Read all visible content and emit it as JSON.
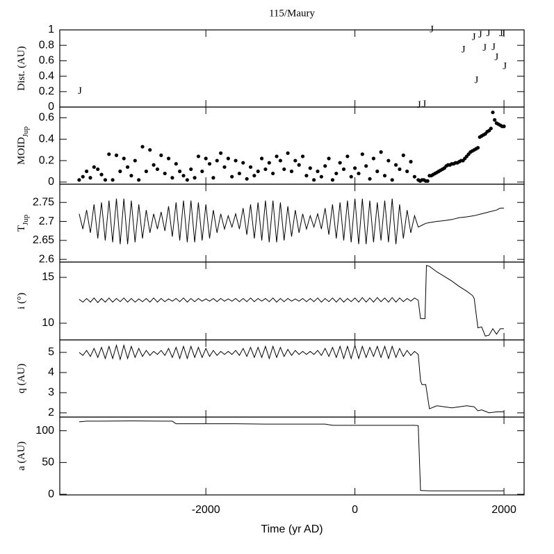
{
  "chart_data": {
    "title": "115/Maury",
    "xlabel": "Time (yr AD)",
    "xlim": [
      -3960,
      2270
    ],
    "xticks": [
      -2000,
      0,
      2000
    ],
    "color": "#000000",
    "panels": [
      {
        "type": "scatter",
        "ylabel": "Dist. (AU)",
        "marker": "J",
        "ylim": [
          0,
          1
        ],
        "yticks": [
          0,
          0.2,
          0.4,
          0.6,
          0.8,
          1
        ],
        "x": [
          -3690,
          860,
          930,
          1030,
          1455,
          1595,
          1630,
          1680,
          1740,
          1790,
          1860,
          1900,
          1960,
          1990,
          2010
        ],
        "values": [
          0.2,
          0.02,
          0.03,
          1.0,
          0.74,
          0.9,
          0.34,
          0.93,
          0.76,
          0.95,
          0.77,
          0.64,
          0.95,
          0.95,
          0.52
        ]
      },
      {
        "type": "scatter",
        "ylabel": "MOID",
        "ylabel_sub": "Jup",
        "ylim": [
          -0.02,
          0.7
        ],
        "yticks": [
          0,
          0.2,
          0.4,
          0.6
        ],
        "x": [
          -3700,
          -3650,
          -3600,
          -3550,
          -3500,
          -3450,
          -3400,
          -3350,
          -3300,
          -3250,
          -3200,
          -3150,
          -3100,
          -3050,
          -3000,
          -2950,
          -2900,
          -2850,
          -2800,
          -2750,
          -2700,
          -2650,
          -2600,
          -2550,
          -2500,
          -2450,
          -2400,
          -2350,
          -2300,
          -2250,
          -2200,
          -2150,
          -2100,
          -2050,
          -2000,
          -1950,
          -1900,
          -1850,
          -1800,
          -1750,
          -1700,
          -1650,
          -1600,
          -1550,
          -1500,
          -1450,
          -1400,
          -1350,
          -1300,
          -1250,
          -1200,
          -1150,
          -1100,
          -1050,
          -1000,
          -950,
          -900,
          -850,
          -800,
          -750,
          -700,
          -650,
          -600,
          -550,
          -500,
          -450,
          -400,
          -350,
          -300,
          -250,
          -200,
          -150,
          -100,
          -50,
          0,
          50,
          100,
          150,
          200,
          250,
          300,
          350,
          400,
          450,
          500,
          550,
          600,
          650,
          700,
          750,
          800,
          850,
          875,
          900,
          925,
          950,
          975,
          1000,
          1025,
          1050,
          1075,
          1100,
          1125,
          1150,
          1175,
          1200,
          1225,
          1250,
          1275,
          1300,
          1325,
          1350,
          1375,
          1400,
          1425,
          1450,
          1475,
          1500,
          1525,
          1550,
          1575,
          1600,
          1625,
          1650,
          1675,
          1700,
          1725,
          1750,
          1775,
          1800,
          1825,
          1850,
          1875,
          1900,
          1925,
          1950,
          1975,
          2000
        ],
        "values": [
          0.02,
          0.05,
          0.1,
          0.04,
          0.14,
          0.12,
          0.07,
          0.02,
          0.26,
          0.02,
          0.25,
          0.1,
          0.22,
          0.14,
          0.06,
          0.2,
          0.02,
          0.33,
          0.1,
          0.3,
          0.16,
          0.12,
          0.25,
          0.08,
          0.22,
          0.04,
          0.17,
          0.1,
          0.06,
          0.02,
          0.12,
          0.04,
          0.24,
          0.1,
          0.22,
          0.17,
          0.04,
          0.2,
          0.27,
          0.14,
          0.22,
          0.05,
          0.2,
          0.08,
          0.18,
          0.03,
          0.14,
          0.06,
          0.1,
          0.22,
          0.12,
          0.18,
          0.08,
          0.24,
          0.2,
          0.12,
          0.27,
          0.1,
          0.2,
          0.16,
          0.24,
          0.06,
          0.13,
          0.02,
          0.1,
          0.05,
          0.15,
          0.22,
          0.02,
          0.08,
          0.18,
          0.12,
          0.24,
          0.05,
          0.13,
          0.08,
          0.26,
          0.15,
          0.03,
          0.22,
          0.1,
          0.28,
          0.06,
          0.2,
          0.02,
          0.16,
          0.12,
          0.25,
          0.1,
          0.19,
          0.05,
          0.02,
          0.01,
          0.02,
          0.02,
          0.01,
          0.01,
          0.06,
          0.06,
          0.07,
          0.08,
          0.09,
          0.1,
          0.11,
          0.12,
          0.13,
          0.15,
          0.16,
          0.16,
          0.17,
          0.17,
          0.18,
          0.18,
          0.19,
          0.2,
          0.2,
          0.22,
          0.24,
          0.26,
          0.28,
          0.29,
          0.3,
          0.31,
          0.32,
          0.42,
          0.43,
          0.44,
          0.45,
          0.47,
          0.48,
          0.5,
          0.65,
          0.58,
          0.55,
          0.54,
          0.53,
          0.52,
          0.52
        ]
      },
      {
        "type": "line",
        "ylabel": "T",
        "ylabel_sub": "Jup",
        "ylim": [
          2.593,
          2.798
        ],
        "yticks": [
          2.6,
          2.65,
          2.7,
          2.75
        ],
        "x": [
          -3700,
          -3650,
          -3600,
          -3550,
          -3500,
          -3450,
          -3400,
          -3350,
          -3300,
          -3250,
          -3200,
          -3150,
          -3100,
          -3050,
          -3000,
          -2950,
          -2900,
          -2850,
          -2800,
          -2750,
          -2700,
          -2650,
          -2600,
          -2550,
          -2500,
          -2450,
          -2400,
          -2350,
          -2300,
          -2250,
          -2200,
          -2150,
          -2100,
          -2050,
          -2000,
          -1950,
          -1900,
          -1850,
          -1800,
          -1750,
          -1700,
          -1650,
          -1600,
          -1550,
          -1500,
          -1450,
          -1400,
          -1350,
          -1300,
          -1250,
          -1200,
          -1150,
          -1100,
          -1050,
          -1000,
          -950,
          -900,
          -850,
          -800,
          -750,
          -700,
          -650,
          -600,
          -550,
          -500,
          -450,
          -400,
          -350,
          -300,
          -250,
          -200,
          -150,
          -100,
          -50,
          0,
          50,
          100,
          150,
          200,
          250,
          300,
          350,
          400,
          450,
          500,
          550,
          600,
          650,
          700,
          750,
          800,
          850,
          900,
          950,
          1000,
          1100,
          1200,
          1300,
          1400,
          1500,
          1600,
          1700,
          1800,
          1900,
          1950,
          2000
        ],
        "values": [
          2.72,
          2.68,
          2.73,
          2.67,
          2.745,
          2.655,
          2.75,
          2.65,
          2.755,
          2.645,
          2.76,
          2.64,
          2.76,
          2.64,
          2.755,
          2.645,
          2.745,
          2.655,
          2.73,
          2.67,
          2.72,
          2.68,
          2.725,
          2.675,
          2.74,
          2.66,
          2.75,
          2.65,
          2.755,
          2.645,
          2.755,
          2.645,
          2.75,
          2.65,
          2.745,
          2.655,
          2.73,
          2.67,
          2.72,
          2.68,
          2.715,
          2.685,
          2.72,
          2.68,
          2.735,
          2.665,
          2.745,
          2.655,
          2.75,
          2.65,
          2.755,
          2.645,
          2.755,
          2.645,
          2.75,
          2.65,
          2.74,
          2.66,
          2.73,
          2.67,
          2.72,
          2.68,
          2.715,
          2.685,
          2.72,
          2.68,
          2.735,
          2.665,
          2.745,
          2.655,
          2.75,
          2.65,
          2.755,
          2.645,
          2.76,
          2.64,
          2.76,
          2.64,
          2.755,
          2.645,
          2.75,
          2.65,
          2.755,
          2.645,
          2.76,
          2.64,
          2.745,
          2.655,
          2.73,
          2.67,
          2.715,
          2.685,
          2.69,
          2.695,
          2.697,
          2.7,
          2.702,
          2.705,
          2.71,
          2.712,
          2.715,
          2.72,
          2.725,
          2.73,
          2.735,
          2.735
        ]
      },
      {
        "type": "line",
        "ylabel": "i (°)",
        "ylim": [
          8.18,
          16.67
        ],
        "yticks": [
          10,
          15
        ],
        "x": [
          -3700,
          -3650,
          -3600,
          -3550,
          -3500,
          -3450,
          -3400,
          -3350,
          -3300,
          -3250,
          -3200,
          -3150,
          -3100,
          -3050,
          -3000,
          -2950,
          -2900,
          -2850,
          -2800,
          -2750,
          -2700,
          -2650,
          -2600,
          -2550,
          -2500,
          -2450,
          -2400,
          -2350,
          -2300,
          -2250,
          -2200,
          -2150,
          -2100,
          -2050,
          -2000,
          -1950,
          -1900,
          -1850,
          -1800,
          -1750,
          -1700,
          -1650,
          -1600,
          -1550,
          -1500,
          -1450,
          -1400,
          -1350,
          -1300,
          -1250,
          -1200,
          -1150,
          -1100,
          -1050,
          -1000,
          -950,
          -900,
          -850,
          -800,
          -750,
          -700,
          -650,
          -600,
          -550,
          -500,
          -450,
          -400,
          -350,
          -300,
          -250,
          -200,
          -150,
          -100,
          -50,
          0,
          50,
          100,
          150,
          200,
          250,
          300,
          350,
          400,
          450,
          500,
          550,
          600,
          650,
          700,
          750,
          800,
          850,
          880,
          940,
          960,
          1000,
          1100,
          1200,
          1300,
          1400,
          1500,
          1580,
          1600,
          1650,
          1700,
          1750,
          1800,
          1850,
          1900,
          1950,
          2000
        ],
        "values": [
          12.6,
          12.3,
          12.7,
          12.3,
          12.75,
          12.25,
          12.7,
          12.3,
          12.75,
          12.3,
          12.7,
          12.35,
          12.75,
          12.3,
          12.7,
          12.3,
          12.65,
          12.35,
          12.7,
          12.3,
          12.75,
          12.3,
          12.7,
          12.35,
          12.65,
          12.4,
          12.7,
          12.35,
          12.75,
          12.3,
          12.7,
          12.35,
          12.7,
          12.4,
          12.65,
          12.4,
          12.7,
          12.35,
          12.7,
          12.4,
          12.65,
          12.4,
          12.7,
          12.35,
          12.7,
          12.35,
          12.75,
          12.35,
          12.7,
          12.4,
          12.7,
          12.35,
          12.75,
          12.3,
          12.7,
          12.35,
          12.7,
          12.4,
          12.65,
          12.4,
          12.7,
          12.35,
          12.7,
          12.35,
          12.75,
          12.3,
          12.7,
          12.35,
          12.75,
          12.3,
          12.75,
          12.3,
          12.7,
          12.35,
          12.75,
          12.3,
          12.8,
          12.3,
          12.75,
          12.3,
          12.8,
          12.35,
          12.75,
          12.3,
          12.8,
          12.3,
          12.75,
          12.35,
          12.7,
          12.4,
          12.75,
          12.5,
          10.5,
          10.5,
          16.3,
          16.2,
          15.6,
          15.1,
          14.6,
          14.0,
          13.5,
          13.0,
          12.7,
          9.5,
          9.6,
          8.6,
          8.7,
          9.4,
          8.8,
          9.4,
          9.4
        ]
      },
      {
        "type": "line",
        "ylabel": "q (AU)",
        "ylim": [
          1.79,
          5.62
        ],
        "yticks": [
          2,
          3,
          4,
          5
        ],
        "x": [
          -3700,
          -3650,
          -3600,
          -3550,
          -3500,
          -3450,
          -3400,
          -3350,
          -3300,
          -3250,
          -3200,
          -3150,
          -3100,
          -3050,
          -3000,
          -2950,
          -2900,
          -2850,
          -2800,
          -2750,
          -2700,
          -2650,
          -2600,
          -2550,
          -2500,
          -2450,
          -2400,
          -2350,
          -2300,
          -2250,
          -2200,
          -2150,
          -2100,
          -2050,
          -2000,
          -1950,
          -1900,
          -1850,
          -1800,
          -1750,
          -1700,
          -1650,
          -1600,
          -1550,
          -1500,
          -1450,
          -1400,
          -1350,
          -1300,
          -1250,
          -1200,
          -1150,
          -1100,
          -1050,
          -1000,
          -950,
          -900,
          -850,
          -800,
          -750,
          -700,
          -650,
          -600,
          -550,
          -500,
          -450,
          -400,
          -350,
          -300,
          -250,
          -200,
          -150,
          -100,
          -50,
          0,
          50,
          100,
          150,
          200,
          250,
          300,
          350,
          400,
          450,
          500,
          550,
          600,
          650,
          700,
          750,
          800,
          850,
          880,
          900,
          950,
          1000,
          1100,
          1200,
          1300,
          1400,
          1500,
          1600,
          1650,
          1700,
          1800,
          1900,
          2000
        ],
        "values": [
          5.0,
          4.85,
          5.1,
          4.8,
          5.2,
          4.75,
          5.25,
          4.7,
          5.3,
          4.7,
          5.35,
          4.65,
          5.35,
          4.7,
          5.3,
          4.75,
          5.2,
          4.8,
          5.1,
          4.85,
          5.05,
          4.9,
          5.1,
          4.85,
          5.2,
          4.75,
          5.25,
          4.7,
          5.3,
          4.7,
          5.3,
          4.75,
          5.25,
          4.75,
          5.2,
          4.8,
          5.1,
          4.85,
          5.05,
          4.9,
          5.05,
          4.9,
          5.1,
          4.85,
          5.2,
          4.8,
          5.25,
          4.75,
          5.25,
          4.75,
          5.3,
          4.7,
          5.3,
          4.75,
          5.25,
          4.8,
          5.15,
          4.85,
          5.1,
          4.9,
          5.05,
          4.9,
          5.05,
          4.9,
          5.1,
          4.85,
          5.2,
          4.8,
          5.25,
          4.75,
          5.3,
          4.7,
          5.3,
          4.7,
          5.35,
          4.7,
          5.3,
          4.75,
          5.25,
          4.8,
          5.3,
          4.75,
          5.3,
          4.7,
          5.3,
          4.75,
          5.2,
          4.8,
          5.1,
          4.85,
          5.05,
          4.9,
          3.6,
          3.4,
          3.4,
          2.2,
          2.35,
          2.3,
          2.25,
          2.3,
          2.35,
          2.3,
          2.1,
          2.15,
          2.0,
          2.05,
          2.05
        ]
      },
      {
        "type": "line",
        "ylabel": "a (AU)",
        "ylim": [
          -1,
          121.5
        ],
        "yticks": [
          0,
          50,
          100
        ],
        "x": [
          -3700,
          -3600,
          -3400,
          -3000,
          -2600,
          -2450,
          -2400,
          -2000,
          -1600,
          -1200,
          -800,
          -400,
          -300,
          0,
          400,
          800,
          850,
          880,
          1000,
          1500,
          2000
        ],
        "values": [
          114,
          115,
          115,
          115.5,
          115,
          115,
          111,
          111,
          111,
          110.5,
          110.5,
          110.5,
          108.5,
          108.5,
          108.5,
          108.5,
          108,
          6,
          5.5,
          5.5,
          5.5
        ]
      }
    ]
  }
}
